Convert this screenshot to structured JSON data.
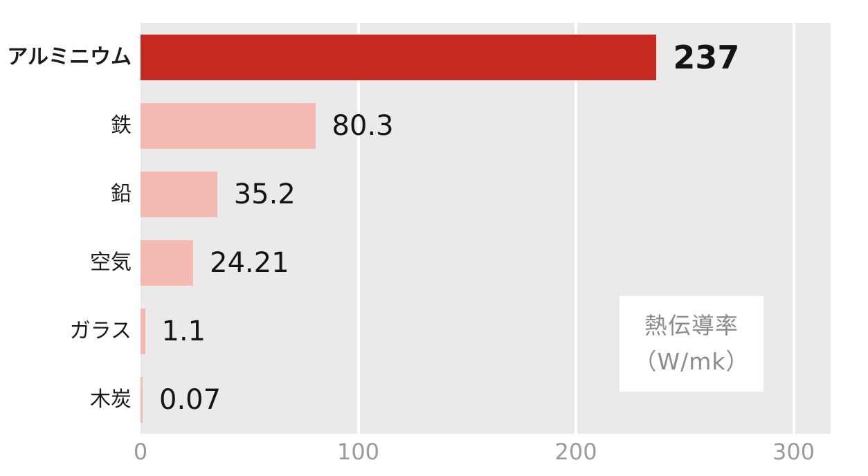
{
  "chart_data": {
    "type": "bar",
    "orientation": "horizontal",
    "categories": [
      "アルミニウム",
      "鉄",
      "鉛",
      "空気",
      "ガラス",
      "木炭"
    ],
    "values": [
      237,
      80.3,
      35.2,
      24.21,
      1.1,
      0.07
    ],
    "value_labels": [
      "237",
      "80.3",
      "35.2",
      "24.21",
      "1.1",
      "0.07"
    ],
    "highlight_index": 0,
    "xlim": [
      0,
      317
    ],
    "x_ticks": [
      0,
      100,
      200,
      300
    ],
    "x_tick_labels": [
      "0",
      "100",
      "200",
      "300"
    ],
    "grid": "vertical white gridlines at 100/200/300",
    "legend_position": "inside lower right",
    "legend": {
      "line1": "熱伝導率",
      "line2": "（W/mk）"
    },
    "colors": {
      "highlight_bar": "#c5291f",
      "bar": "#f4bab2",
      "plot_background": "#eaeaea",
      "page_background": "#ffffff",
      "gridline": "#ffffff",
      "tick_text": "#9b9b9b",
      "legend_text": "#8c8c8c",
      "category_text": "#1b1b1b",
      "value_text": "#141414"
    }
  }
}
